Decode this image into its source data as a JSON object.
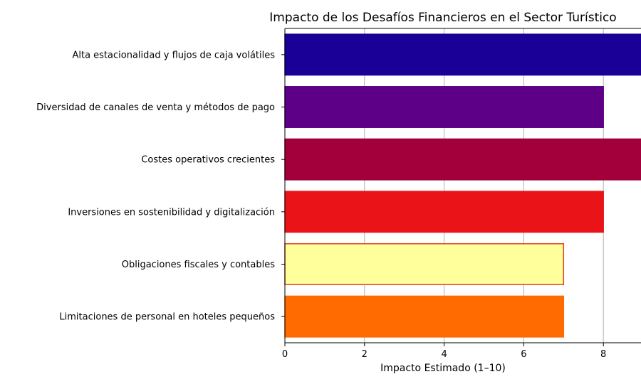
{
  "chart_data": {
    "type": "bar",
    "orientation": "horizontal",
    "title": "Impacto de los Desafíos Financieros en el Sector Turístico",
    "xlabel": "Impacto Estimado (1–10)",
    "ylabel": "",
    "xlim": [
      0,
      10
    ],
    "ticks": [
      0,
      2,
      4,
      6,
      8
    ],
    "grid": "x",
    "categories": [
      "Alta estacionalidad y flujos de caja volátiles",
      "Diversidad de canales de venta y métodos de pago",
      "Costes operativos crecientes",
      "Inversiones en sostenibilidad y digitalización",
      "Obligaciones fiscales y contables",
      "Limitaciones de personal en hoteles pequeños"
    ],
    "values": [
      9,
      8,
      9,
      8,
      7,
      7
    ],
    "colors": [
      "#1a0096",
      "#5e0087",
      "#a3003b",
      "#ea1418",
      "#ffff9c",
      "#ff6b00"
    ],
    "edge_colors": [
      "#1a0096",
      "#5e0087",
      "#a3003b",
      "#ea1418",
      "#e4421d",
      "#ff6b00"
    ]
  }
}
